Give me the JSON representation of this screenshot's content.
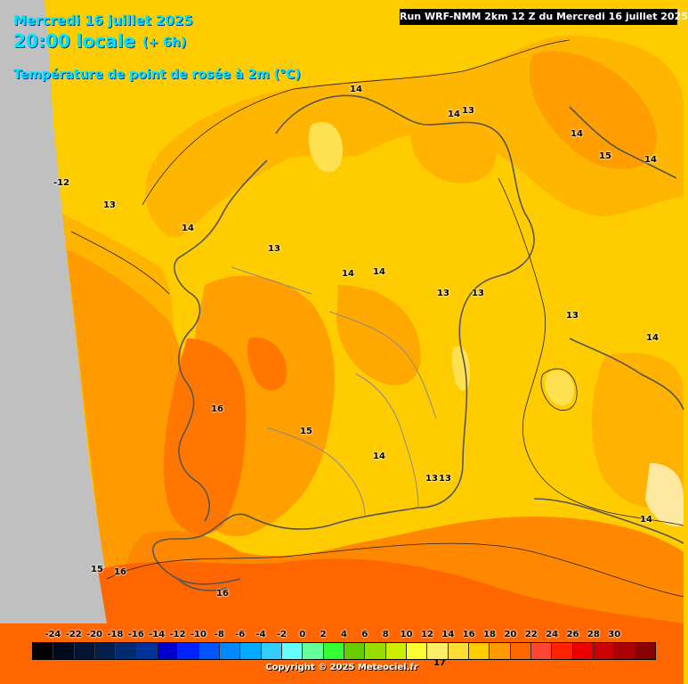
{
  "header": {
    "date": "Mercredi 16 juillet 2025",
    "local_time": "20:00 locale",
    "offset": "(+ 6h)",
    "parameter": "Température de point de rosée à 2m (°C)",
    "run": "Run WRF-NMM 2km 12 Z du Mercredi 16 juillet 2025"
  },
  "contour_labels": [
    "14",
    "14",
    "13",
    "14",
    "15",
    "14",
    "-12",
    "13",
    "14",
    "13",
    "14",
    "14",
    "13",
    "13",
    "13",
    "14",
    "16",
    "15",
    "14",
    "13",
    "13",
    "14",
    "15",
    "16",
    "16"
  ],
  "legend": {
    "values": [
      "-24",
      "-22",
      "-20",
      "-18",
      "-16",
      "-14",
      "-12",
      "-10",
      "-8",
      "-6",
      "-4",
      "-2",
      "0",
      "2",
      "4",
      "6",
      "8",
      "10",
      "12",
      "14",
      "16",
      "18",
      "20",
      "22",
      "24",
      "26",
      "28",
      "30"
    ],
    "colors": [
      "#000000",
      "#000a1f",
      "#001433",
      "#001f4d",
      "#002b70",
      "#003399",
      "#0000cc",
      "#0022ff",
      "#0055ff",
      "#0088ff",
      "#00aaff",
      "#33ccff",
      "#66ffff",
      "#66ff99",
      "#33ff33",
      "#66cc00",
      "#99dd00",
      "#ccee00",
      "#ffff33",
      "#ffee66",
      "#ffdd33",
      "#ffcc00",
      "#ff9900",
      "#ff6600",
      "#ff4433",
      "#ff2200",
      "#ee0000",
      "#cc0000",
      "#aa0000",
      "#880000"
    ],
    "extra_label": "17"
  },
  "copyright": "Copyright © 2025 Meteociel.fr",
  "colors": {
    "t13": "#ffcc00",
    "t14": "#ffb200",
    "t15": "#ff9a00",
    "t16": "#ff7700",
    "t12": "#ffe050",
    "sea_west": "#c0c0c0"
  }
}
